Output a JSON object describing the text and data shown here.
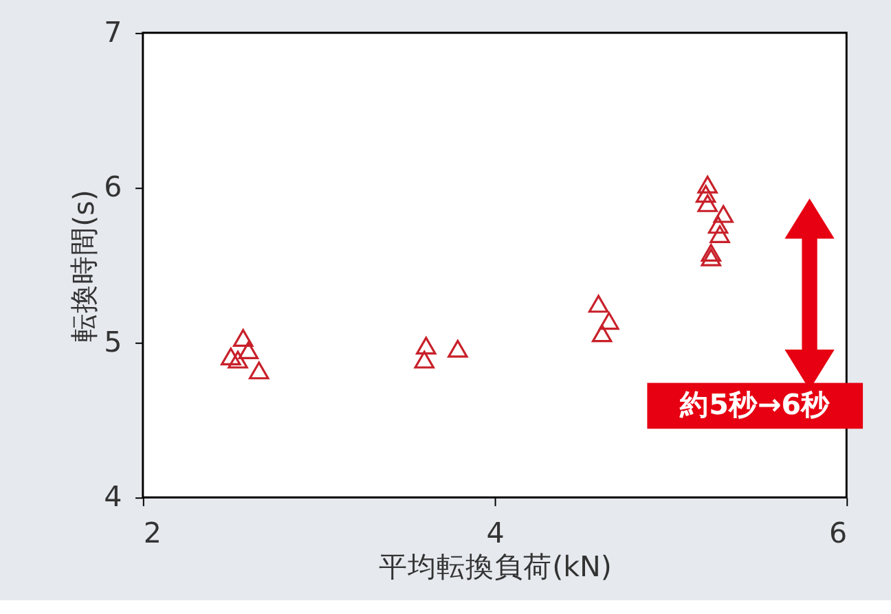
{
  "chart_data": {
    "type": "scatter",
    "xlabel": "平均転換負荷(kN)",
    "ylabel": "転換時間(s)",
    "x": [
      2.57,
      2.5,
      2.54,
      2.6,
      2.66,
      3.61,
      3.6,
      3.79,
      4.59,
      4.65,
      4.61,
      5.21,
      5.2,
      5.21,
      5.3,
      5.27,
      5.28,
      5.23,
      5.23
    ],
    "series": [
      {
        "color": "#c8202a",
        "values": [
          5.03,
          4.91,
          4.89,
          4.95,
          4.82,
          4.98,
          4.89,
          4.96,
          5.25,
          5.14,
          5.06,
          6.02,
          5.96,
          5.9,
          5.83,
          5.76,
          5.7,
          5.58,
          5.55
        ]
      }
    ],
    "xlim": [
      2,
      6
    ],
    "xticks": [
      2,
      4,
      6
    ],
    "ylim": [
      4,
      7
    ],
    "yticks": [
      4,
      5,
      6,
      7
    ],
    "grid": false,
    "marker": "triangle",
    "annotations": [
      "約5秒→6秒"
    ]
  }
}
